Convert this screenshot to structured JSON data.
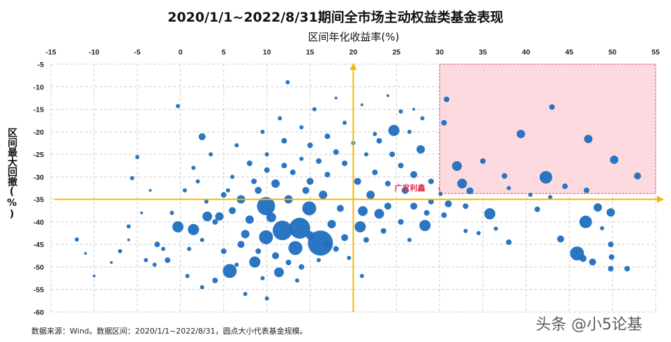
{
  "chart_data": {
    "type": "scatter",
    "title": "2020/1/1~2022/8/31期间全市场主动权益类基金表现",
    "xlabel": "区间年化收益率(%)",
    "ylabel": "区间最大回撤(%)",
    "xlim": [
      -15,
      55
    ],
    "ylim": [
      -60,
      -5
    ],
    "x_ticks": [
      "-15",
      "-10",
      "-5",
      "0",
      "5",
      "10",
      "15",
      "20",
      "25",
      "30",
      "35",
      "40",
      "45",
      "50",
      "55"
    ],
    "y_ticks": [
      "-5",
      "-10",
      "-15",
      "-20",
      "-25",
      "-30",
      "-35",
      "-40",
      "-45",
      "-50",
      "-55",
      "-60"
    ],
    "x_axis_position": "top",
    "grid": true,
    "grid_style": "dashed",
    "legend": "none",
    "point_color": "#1f6fbf",
    "size_meaning": "基金规模 (relative)",
    "reference_lines": {
      "vertical_x": 20,
      "horizontal_y": -35,
      "color": "#f5b800"
    },
    "highlight_region": {
      "x_range": [
        30,
        55
      ],
      "y_range": [
        -33.7,
        -5
      ],
      "fill": "#fbd3db",
      "border": "#e0455f"
    },
    "annotation": {
      "text": "广发利鑫",
      "x": 30.1,
      "y": -33.8,
      "color": "#e0304e"
    },
    "points": [
      [
        16.2,
        -44.7,
        18
      ],
      [
        13.8,
        -41.4,
        15
      ],
      [
        11.8,
        -41.9,
        14
      ],
      [
        9.9,
        -36.5,
        13
      ],
      [
        9.9,
        -43.4,
        10
      ],
      [
        14.9,
        -37,
        10
      ],
      [
        5.7,
        -50.9,
        10
      ],
      [
        13.3,
        -45.8,
        10
      ],
      [
        24.7,
        -19.7,
        8
      ],
      [
        45.9,
        -47,
        10
      ],
      [
        46.9,
        -40,
        9
      ],
      [
        42.3,
        -30.1,
        9
      ],
      [
        35.8,
        -38.2,
        8
      ],
      [
        32,
        -27.6,
        7
      ],
      [
        32.6,
        -31.5,
        7
      ],
      [
        39.4,
        -20.5,
        6
      ],
      [
        47.2,
        -21.6,
        6
      ],
      [
        50.2,
        -26.2,
        6
      ],
      [
        52.9,
        -29.8,
        5
      ],
      [
        48.3,
        -36.8,
        6
      ],
      [
        49.8,
        -37.9,
        6
      ],
      [
        28.3,
        -40.8,
        8
      ],
      [
        21.1,
        -37.6,
        7
      ],
      [
        20.8,
        -41.1,
        8
      ],
      [
        23,
        -38.2,
        7
      ],
      [
        27.8,
        -23.9,
        6
      ],
      [
        -0.3,
        -41.1,
        8
      ],
      [
        1.5,
        -41.7,
        8
      ],
      [
        3.1,
        -38.8,
        7
      ],
      [
        4.5,
        -38.8,
        6
      ],
      [
        8.6,
        -48.9,
        8
      ],
      [
        11.4,
        -51.2,
        7
      ],
      [
        7.5,
        -42.7,
        6
      ],
      [
        2.5,
        -21.1,
        5
      ],
      [
        43,
        -14.5,
        4
      ],
      [
        30.8,
        -12.8,
        4
      ],
      [
        30.5,
        -18,
        4
      ],
      [
        44,
        -43.8,
        5
      ],
      [
        46.6,
        -48.1,
        5
      ],
      [
        47.7,
        -48.9,
        5
      ],
      [
        49.8,
        -45,
        4
      ],
      [
        49.9,
        -47.8,
        4
      ],
      [
        49.8,
        -50.4,
        4
      ],
      [
        51.7,
        -50.4,
        4
      ],
      [
        48.8,
        -41.4,
        3
      ],
      [
        41.3,
        -37.2,
        4
      ],
      [
        -2.7,
        -45,
        4
      ],
      [
        -12,
        -43.9,
        3
      ],
      [
        -5,
        -25.6,
        3
      ],
      [
        -5.6,
        -30.3,
        3
      ],
      [
        -0.3,
        -14.3,
        3
      ],
      [
        12.4,
        -9,
        3
      ],
      [
        30.1,
        -33.8,
        3
      ],
      [
        33.5,
        -33.1,
        5
      ],
      [
        37.5,
        -29.8,
        4
      ],
      [
        35,
        -26.5,
        4
      ],
      [
        38,
        -32.5,
        3
      ],
      [
        40.5,
        -34,
        3
      ],
      [
        44.5,
        -32.1,
        4
      ],
      [
        47,
        -33,
        4
      ],
      [
        42.8,
        -34.5,
        3
      ],
      [
        31,
        -36,
        5
      ],
      [
        33,
        -36.5,
        4
      ],
      [
        36.5,
        -41.5,
        3
      ],
      [
        38,
        -44.5,
        4
      ],
      [
        33,
        -42,
        3
      ],
      [
        34.5,
        -42.5,
        3
      ],
      [
        30.5,
        -38.5,
        4
      ],
      [
        29,
        -31,
        4
      ],
      [
        27,
        -29.5,
        5
      ],
      [
        25.5,
        -27.5,
        4
      ],
      [
        26,
        -33,
        5
      ],
      [
        24,
        -31.5,
        4
      ],
      [
        22.5,
        -29,
        4
      ],
      [
        21.5,
        -25,
        3
      ],
      [
        23,
        -22,
        4
      ],
      [
        26.5,
        -20,
        3
      ],
      [
        28,
        -17,
        3
      ],
      [
        25.5,
        -15.5,
        3
      ],
      [
        19,
        -18,
        3
      ],
      [
        17,
        -21,
        4
      ],
      [
        15,
        -23,
        4
      ],
      [
        14,
        -19,
        3
      ],
      [
        12,
        -22,
        4
      ],
      [
        10,
        -25,
        3
      ],
      [
        8,
        -27,
        4
      ],
      [
        6,
        -30,
        3
      ],
      [
        5,
        -34,
        4
      ],
      [
        3,
        -35.5,
        3
      ],
      [
        2,
        -31,
        3
      ],
      [
        0.5,
        -33,
        3
      ],
      [
        -1,
        -38,
        3
      ],
      [
        -2,
        -46,
        3
      ],
      [
        -3,
        -49.5,
        3
      ],
      [
        -4,
        -48.5,
        3
      ],
      [
        -1.5,
        -48.5,
        4
      ],
      [
        0.8,
        -52,
        3
      ],
      [
        2.5,
        -54.5,
        3
      ],
      [
        4,
        -53,
        4
      ],
      [
        6.5,
        -49.5,
        3
      ],
      [
        7.5,
        -56,
        3
      ],
      [
        9.5,
        -52.5,
        3
      ],
      [
        14,
        -50,
        4
      ],
      [
        16,
        -48.5,
        3
      ],
      [
        18,
        -46,
        4
      ],
      [
        19,
        -43.5,
        5
      ],
      [
        17.5,
        -40.5,
        6
      ],
      [
        18.5,
        -37,
        5
      ],
      [
        16.5,
        -34,
        6
      ],
      [
        15,
        -31,
        5
      ],
      [
        13,
        -29,
        4
      ],
      [
        11,
        -31.5,
        6
      ],
      [
        9,
        -33,
        5
      ],
      [
        7,
        -35,
        6
      ],
      [
        6,
        -37.5,
        5
      ],
      [
        8,
        -39.5,
        6
      ],
      [
        10.5,
        -39,
        7
      ],
      [
        12.5,
        -35,
        6
      ],
      [
        14.5,
        -33,
        5
      ],
      [
        17,
        -29.5,
        4
      ],
      [
        19,
        -27,
        4
      ],
      [
        20.5,
        -31,
        5
      ],
      [
        22,
        -34,
        6
      ],
      [
        24,
        -36.5,
        5
      ],
      [
        25.5,
        -40,
        4
      ],
      [
        23.5,
        -42,
        4
      ],
      [
        21.5,
        -44,
        4
      ],
      [
        26.5,
        -44,
        3
      ],
      [
        28.5,
        -38,
        4
      ],
      [
        29,
        -35.5,
        4
      ],
      [
        27,
        -36.5,
        5
      ],
      [
        24.5,
        -25,
        4
      ],
      [
        22.5,
        -20.5,
        3
      ],
      [
        20,
        -22.5,
        3
      ],
      [
        18,
        -24.5,
        4
      ],
      [
        16,
        -26.5,
        4
      ],
      [
        14,
        -26,
        3
      ],
      [
        12,
        -27.5,
        4
      ],
      [
        10,
        -28.5,
        4
      ],
      [
        8.5,
        -31,
        4
      ],
      [
        5.5,
        -33,
        3
      ],
      [
        4,
        -40,
        4
      ],
      [
        2.5,
        -44,
        3
      ],
      [
        1,
        -46,
        3
      ],
      [
        5,
        -46.5,
        4
      ],
      [
        7,
        -45,
        5
      ],
      [
        9,
        -46.5,
        4
      ],
      [
        11,
        -47.5,
        5
      ],
      [
        12.5,
        -49,
        4
      ],
      [
        15,
        -43,
        6
      ],
      [
        17,
        -45,
        5
      ],
      [
        19.5,
        -48,
        3
      ],
      [
        13.5,
        -53,
        3
      ],
      [
        10,
        -57,
        3
      ],
      [
        21,
        -52,
        3
      ],
      [
        -7,
        -46.5,
        3
      ],
      [
        -8,
        -49,
        2
      ],
      [
        -10,
        -52,
        2
      ],
      [
        -11,
        -47,
        2
      ],
      [
        -6,
        -44,
        2
      ],
      [
        -4.5,
        -38,
        2
      ],
      [
        -3.5,
        -33,
        2
      ],
      [
        -6,
        -41,
        3
      ],
      [
        1.5,
        -28,
        3
      ],
      [
        3.5,
        -25,
        3
      ],
      [
        6.5,
        -23,
        3
      ],
      [
        9.5,
        -20,
        3
      ],
      [
        11.5,
        -17,
        3
      ],
      [
        15.5,
        -15,
        3
      ],
      [
        18,
        -12.5,
        2
      ],
      [
        21,
        -14,
        2
      ],
      [
        24,
        -12,
        2
      ],
      [
        27,
        -15,
        2
      ]
    ]
  },
  "footer": {
    "source": "数据来源：Wind。数据区间：2020/1/1~2022/8/31，圆点大小代表基金规模。",
    "watermark": "头条 @小5论基"
  }
}
